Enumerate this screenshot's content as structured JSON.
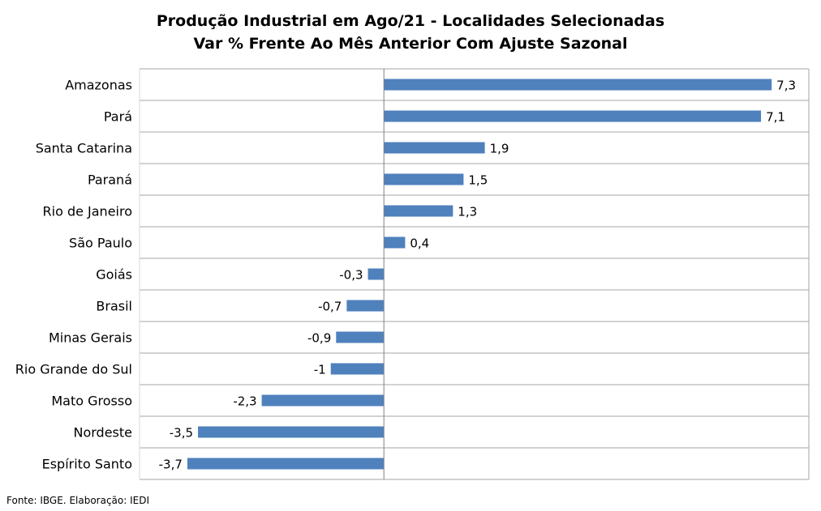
{
  "chart_data": {
    "type": "bar",
    "orientation": "horizontal",
    "title": "Produção Industrial em Ago/21 - Localidades Selecionadas",
    "subtitle": "Var % Frente Ao Mês Anterior Com Ajuste Sazonal",
    "categories": [
      "Amazonas",
      "Pará",
      "Santa Catarina",
      "Paraná",
      "Rio de Janeiro",
      "São Paulo",
      "Goiás",
      "Brasil",
      "Minas Gerais",
      "Rio Grande do Sul",
      "Mato Grosso",
      "Nordeste",
      "Espírito Santo"
    ],
    "values": [
      7.3,
      7.1,
      1.9,
      1.5,
      1.3,
      0.4,
      -0.3,
      -0.7,
      -0.9,
      -1,
      -2.3,
      -3.5,
      -3.7
    ],
    "value_labels": [
      "7,3",
      "7,1",
      "1,9",
      "1,5",
      "1,3",
      "0,4",
      "-0,3",
      "-0,7",
      "-0,9",
      "-1",
      "-2,3",
      "-3,5",
      "-3,7"
    ],
    "xlim": [
      -4.6,
      8.0
    ],
    "bar_color": "#4f81bd",
    "grid": true,
    "legend": "none"
  },
  "footer": "Fonte: IBGE. Elaboração: IEDI"
}
